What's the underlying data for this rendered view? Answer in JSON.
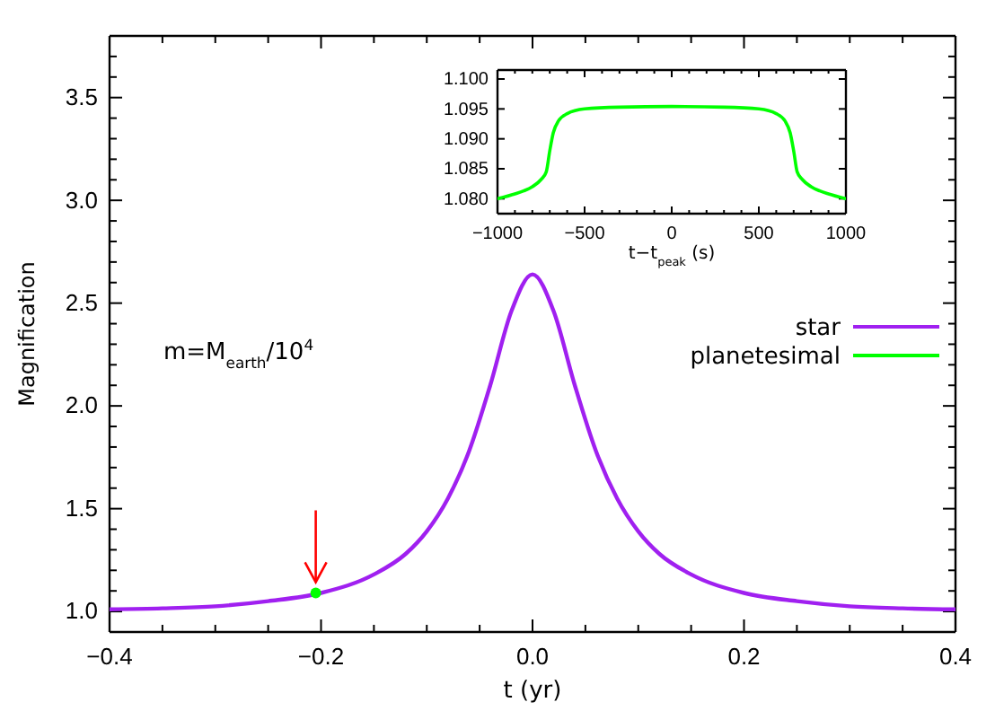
{
  "chart_data": [
    {
      "type": "line",
      "xlabel": "t (yr)",
      "ylabel": "Magnification",
      "annotations": [
        "m=M$_{earth}$/10$^{4}$"
      ],
      "xlim": [
        -0.4,
        0.4
      ],
      "ylim": [
        0.9,
        3.8
      ],
      "xticks": [
        {
          "value": -0.4,
          "label": "−0.4"
        },
        {
          "value": -0.35,
          "label": null
        },
        {
          "value": -0.3,
          "label": null
        },
        {
          "value": -0.25,
          "label": null
        },
        {
          "value": -0.2,
          "label": "−0.2"
        },
        {
          "value": -0.15,
          "label": null
        },
        {
          "value": -0.1,
          "label": null
        },
        {
          "value": -0.05,
          "label": null
        },
        {
          "value": 0,
          "label": "0.0"
        },
        {
          "value": 0.05,
          "label": null
        },
        {
          "value": 0.1,
          "label": null
        },
        {
          "value": 0.15,
          "label": null
        },
        {
          "value": 0.2,
          "label": "0.2"
        },
        {
          "value": 0.25,
          "label": null
        },
        {
          "value": 0.3,
          "label": null
        },
        {
          "value": 0.35,
          "label": null
        },
        {
          "value": 0.4,
          "label": "0.4"
        }
      ],
      "yticks": [
        {
          "value": 1.0,
          "label": "1.0"
        },
        {
          "value": 1.1,
          "label": null
        },
        {
          "value": 1.2,
          "label": null
        },
        {
          "value": 1.3,
          "label": null
        },
        {
          "value": 1.4,
          "label": null
        },
        {
          "value": 1.5,
          "label": "1.5"
        },
        {
          "value": 1.6,
          "label": null
        },
        {
          "value": 1.7,
          "label": null
        },
        {
          "value": 1.8,
          "label": null
        },
        {
          "value": 1.9,
          "label": null
        },
        {
          "value": 2.0,
          "label": "2.0"
        },
        {
          "value": 2.1,
          "label": null
        },
        {
          "value": 2.2,
          "label": null
        },
        {
          "value": 2.3,
          "label": null
        },
        {
          "value": 2.4,
          "label": null
        },
        {
          "value": 2.5,
          "label": "2.5"
        },
        {
          "value": 2.6,
          "label": null
        },
        {
          "value": 2.7,
          "label": null
        },
        {
          "value": 2.8,
          "label": null
        },
        {
          "value": 2.9,
          "label": null
        },
        {
          "value": 3.0,
          "label": "3.0"
        },
        {
          "value": 3.1,
          "label": null
        },
        {
          "value": 3.2,
          "label": null
        },
        {
          "value": 3.3,
          "label": null
        },
        {
          "value": 3.4,
          "label": null
        },
        {
          "value": 3.5,
          "label": "3.5"
        },
        {
          "value": 3.6,
          "label": null
        },
        {
          "value": 3.7,
          "label": null
        }
      ],
      "legend": "right",
      "series": [
        {
          "name": "star",
          "color": "#a020f0",
          "x": [
            -0.4,
            -0.35,
            -0.3,
            -0.25,
            -0.2,
            -0.15,
            -0.12,
            -0.1,
            -0.08,
            -0.06,
            -0.04,
            -0.02,
            0,
            0.02,
            0.04,
            0.06,
            0.08,
            0.1,
            0.12,
            0.15,
            0.2,
            0.25,
            0.3,
            0.35,
            0.4
          ],
          "values": [
            1.01,
            1.015,
            1.025,
            1.05,
            1.09,
            1.18,
            1.28,
            1.39,
            1.55,
            1.78,
            2.1,
            2.46,
            2.64,
            2.46,
            2.1,
            1.78,
            1.55,
            1.39,
            1.28,
            1.18,
            1.09,
            1.05,
            1.025,
            1.015,
            1.01
          ]
        },
        {
          "name": "planetesimal",
          "type": "scatter",
          "marker": "circle",
          "color": "#00ff00",
          "x": [
            -0.205
          ],
          "values": [
            1.09
          ]
        }
      ]
    },
    {
      "type": "line",
      "xlabel": "t−t$_{peak}$ (s)",
      "xlim": [
        -1000,
        1000
      ],
      "ylim": [
        1.0775,
        1.1015
      ],
      "xticks": [
        {
          "value": -1000,
          "label": "−1000"
        },
        {
          "value": -900,
          "label": null
        },
        {
          "value": -800,
          "label": null
        },
        {
          "value": -700,
          "label": null
        },
        {
          "value": -600,
          "label": null
        },
        {
          "value": -500,
          "label": "−500"
        },
        {
          "value": -400,
          "label": null
        },
        {
          "value": -300,
          "label": null
        },
        {
          "value": -200,
          "label": null
        },
        {
          "value": -100,
          "label": null
        },
        {
          "value": 0,
          "label": "0"
        },
        {
          "value": 100,
          "label": null
        },
        {
          "value": 200,
          "label": null
        },
        {
          "value": 300,
          "label": null
        },
        {
          "value": 400,
          "label": null
        },
        {
          "value": 500,
          "label": "500"
        },
        {
          "value": 600,
          "label": null
        },
        {
          "value": 700,
          "label": null
        },
        {
          "value": 800,
          "label": null
        },
        {
          "value": 900,
          "label": null
        },
        {
          "value": 1000,
          "label": "1000"
        }
      ],
      "yticks": [
        {
          "value": 1.08,
          "label": "1.080"
        },
        {
          "value": 1.085,
          "label": "1.085"
        },
        {
          "value": 1.09,
          "label": "1.090"
        },
        {
          "value": 1.095,
          "label": "1.095"
        },
        {
          "value": 1.1,
          "label": "1.100"
        }
      ],
      "series": [
        {
          "color": "#00ff00",
          "x": [
            -1000,
            -900,
            -850,
            -800,
            -750,
            -720,
            -700,
            -680,
            -650,
            -600,
            -500,
            -300,
            0,
            300,
            500,
            600,
            650,
            680,
            700,
            720,
            750,
            800,
            850,
            900,
            1000
          ],
          "values": [
            1.08,
            1.0808,
            1.0813,
            1.082,
            1.0832,
            1.0845,
            1.088,
            1.091,
            1.093,
            1.0942,
            1.095,
            1.0953,
            1.0954,
            1.0953,
            1.095,
            1.0942,
            1.093,
            1.091,
            1.088,
            1.0845,
            1.0832,
            1.082,
            1.0813,
            1.0808,
            1.08
          ]
        }
      ]
    }
  ]
}
